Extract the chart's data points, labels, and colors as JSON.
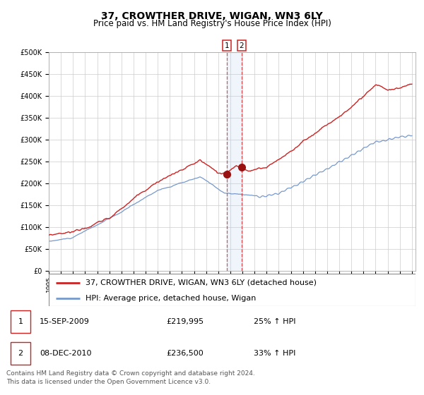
{
  "title": "37, CROWTHER DRIVE, WIGAN, WN3 6LY",
  "subtitle": "Price paid vs. HM Land Registry's House Price Index (HPI)",
  "ylim": [
    0,
    500000
  ],
  "yticks": [
    0,
    50000,
    100000,
    150000,
    200000,
    250000,
    300000,
    350000,
    400000,
    450000,
    500000
  ],
  "ytick_labels": [
    "£0",
    "£50K",
    "£100K",
    "£150K",
    "£200K",
    "£250K",
    "£300K",
    "£350K",
    "£400K",
    "£450K",
    "£500K"
  ],
  "hpi_color": "#7799cc",
  "price_color": "#cc2222",
  "marker_color": "#991111",
  "bg_color": "#ffffff",
  "grid_color": "#cccccc",
  "purchase1_date_num": 2009.71,
  "purchase1_price": 219995,
  "purchase2_date_num": 2010.93,
  "purchase2_price": 236500,
  "legend_property": "37, CROWTHER DRIVE, WIGAN, WN3 6LY (detached house)",
  "legend_hpi": "HPI: Average price, detached house, Wigan",
  "table_rows": [
    {
      "num": "1",
      "date": "15-SEP-2009",
      "price": "£219,995",
      "hpi": "25% ↑ HPI"
    },
    {
      "num": "2",
      "date": "08-DEC-2010",
      "price": "£236,500",
      "hpi": "33% ↑ HPI"
    }
  ],
  "footer": "Contains HM Land Registry data © Crown copyright and database right 2024.\nThis data is licensed under the Open Government Licence v3.0.",
  "title_fontsize": 10,
  "subtitle_fontsize": 8.5,
  "tick_fontsize": 7,
  "legend_fontsize": 8,
  "table_fontsize": 8,
  "footer_fontsize": 6.5,
  "xstart": 1995,
  "xend": 2025,
  "npoints": 361
}
